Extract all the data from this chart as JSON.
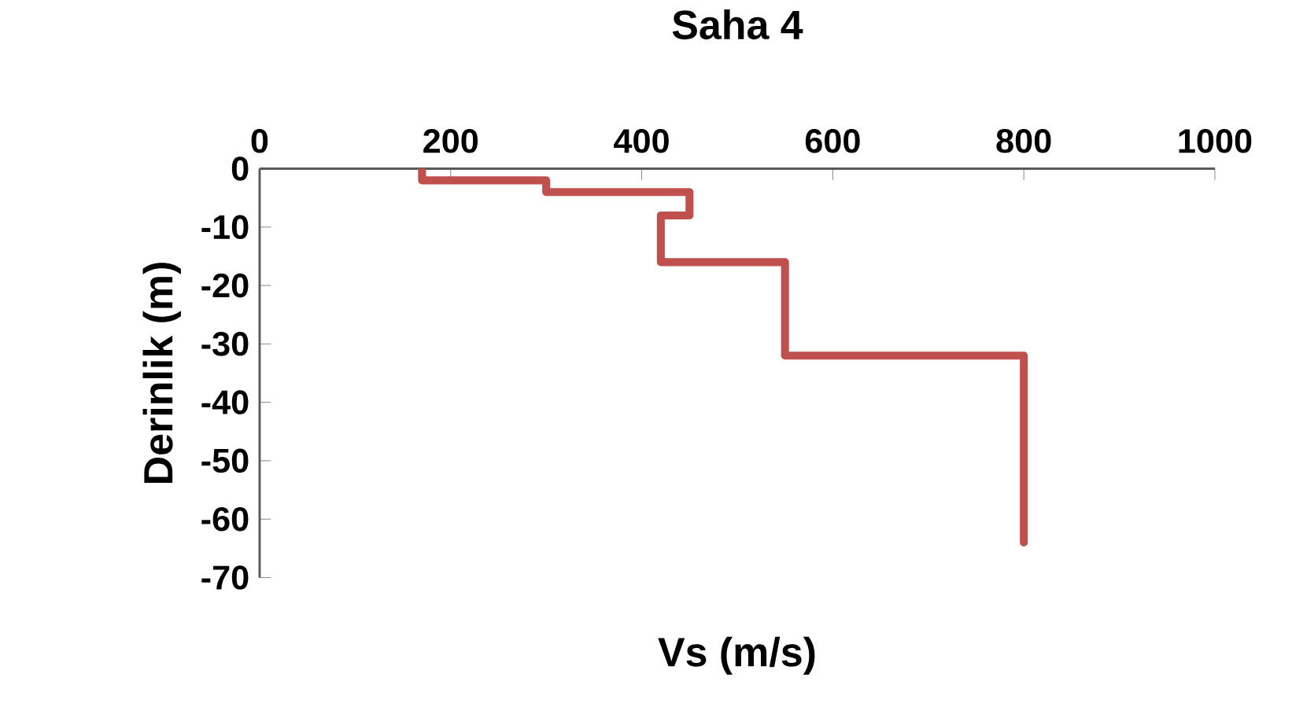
{
  "chart_data": {
    "type": "line",
    "title": "Saha 4",
    "xlabel": "Vs (m/s)",
    "ylabel": "Derinlik  (m)",
    "x": [
      170,
      170,
      300,
      300,
      450,
      450,
      420,
      420,
      550,
      550,
      800,
      800
    ],
    "series": [
      {
        "color": "#c0504d",
        "values": [
          0,
          -2,
          -2,
          -4,
          -4,
          -8,
          -8,
          -16,
          -16,
          -32,
          -32,
          -64
        ]
      }
    ],
    "xlim": [
      0,
      1000
    ],
    "xticks": [
      0,
      200,
      400,
      600,
      800,
      1000
    ],
    "ylim": [
      -70,
      0
    ],
    "yticks": [
      -70,
      -60,
      -50,
      -40,
      -30,
      -20,
      -10,
      0
    ],
    "grid": false,
    "legend": false,
    "marker": "none",
    "line_style": "solid"
  }
}
